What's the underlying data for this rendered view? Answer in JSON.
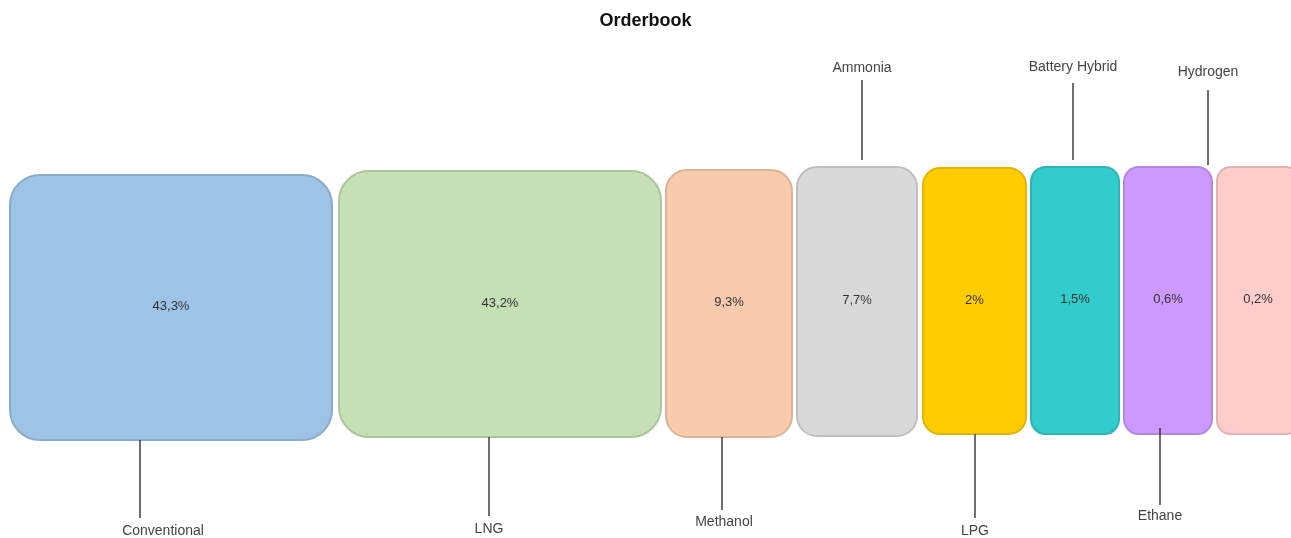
{
  "chart_data": {
    "type": "other",
    "title": "Orderbook",
    "categories": [
      "Conventional",
      "LNG",
      "Methanol",
      "Ammonia",
      "LPG",
      "Battery Hybrid",
      "Ethane",
      "Hydrogen"
    ],
    "values": [
      43.3,
      43.2,
      9.3,
      7.7,
      2,
      1.5,
      0.6,
      0.2
    ],
    "value_labels": [
      "43,3%",
      "43,2%",
      "9,3%",
      "7,7%",
      "2%",
      "1,5%",
      "0,6%",
      "0,2%"
    ],
    "colors": [
      "#9dc3e6",
      "#c5e0b4",
      "#f8cbad",
      "#d9d9d9",
      "#ffcc00",
      "#33cccc",
      "#cc99ff",
      "#ffcccc"
    ]
  }
}
